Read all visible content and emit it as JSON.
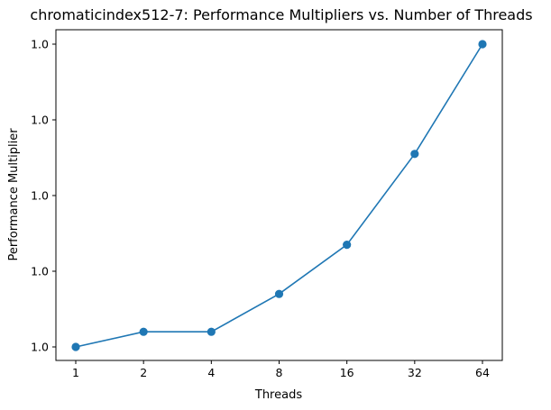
{
  "chart_data": {
    "type": "line",
    "title": "chromaticindex512-7: Performance Multipliers vs. Number of Threads",
    "xlabel": "Threads",
    "ylabel": "Performance Multiplier",
    "x_scale": "log2",
    "categories": [
      "1",
      "2",
      "4",
      "8",
      "16",
      "32",
      "64"
    ],
    "x": [
      1,
      2,
      4,
      8,
      16,
      32,
      64
    ],
    "values": [
      1.0,
      1.0004,
      1.0004,
      1.0014,
      1.0027,
      1.0051,
      1.008
    ],
    "ylim": [
      0.9995,
      1.0085
    ],
    "y_ticks": [
      1.0,
      1.002,
      1.004,
      1.006,
      1.008
    ],
    "y_tick_labels": [
      "1.0",
      "1.0",
      "1.0",
      "1.0",
      "1.0"
    ],
    "grid": false,
    "legend": "none",
    "series_color": "#1f77b4",
    "marker": "circle"
  }
}
